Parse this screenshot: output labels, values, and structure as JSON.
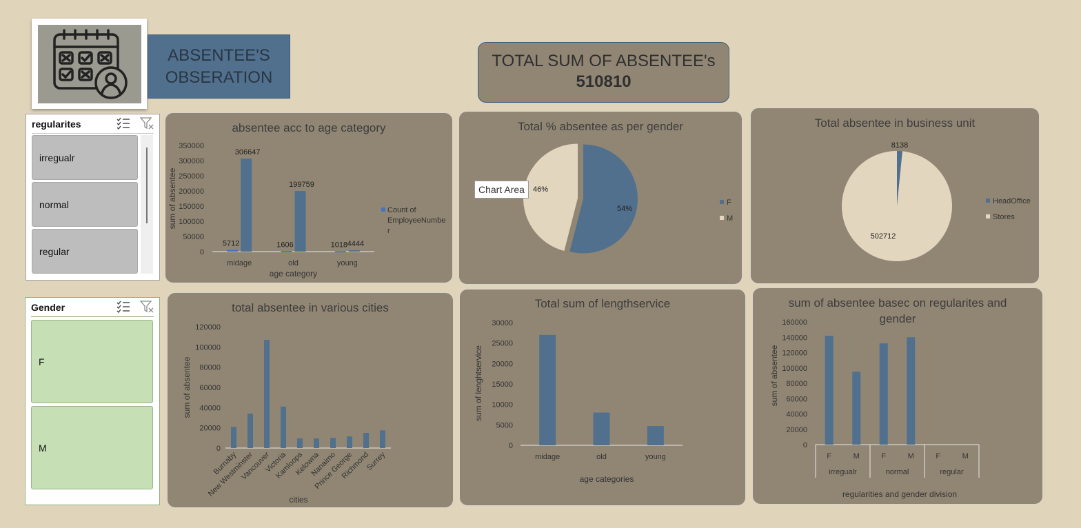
{
  "header": {
    "title_line1": "ABSENTEE'S",
    "title_line2": "OBSERATION",
    "total_label": "TOTAL SUM OF ABSENTEE's",
    "total_value": "510810"
  },
  "slicers": {
    "regularites": {
      "title": "regularites",
      "items": [
        "irregualr",
        "normal",
        "regular"
      ]
    },
    "gender": {
      "title": "Gender",
      "items": [
        "F",
        "M"
      ]
    }
  },
  "tooltip": "Chart Area",
  "colors": {
    "background": "#e0d4bb",
    "panel": "#918674",
    "series_blue": "#50708e",
    "series_cream": "#e3d6bf",
    "slicer_gray": "#bdbdbd",
    "slicer_green": "#c6dfb4"
  },
  "icons": [
    "calendar-person-icon",
    "multi-select-icon",
    "clear-filter-icon"
  ],
  "chart_data": [
    {
      "id": "age",
      "type": "bar",
      "title": "absentee acc to age category",
      "xlabel": "age category",
      "ylabel": "sum of absentee",
      "categories": [
        "midage",
        "old",
        "young"
      ],
      "ylim": [
        0,
        350000
      ],
      "yticks": [
        "0",
        "50000",
        "100000",
        "150000",
        "200000",
        "250000",
        "300000",
        "350000"
      ],
      "series": [
        {
          "name": "Count of EmployeeNumber",
          "values": [
            5712,
            1606,
            1018
          ]
        },
        {
          "values": [
            306647,
            199759,
            4444
          ]
        }
      ],
      "legend": [
        "Count of",
        "EmployeeNumbe",
        "r"
      ]
    },
    {
      "id": "gender",
      "type": "pie",
      "title": "Total % absentee as per gender",
      "categories": [
        "F",
        "M"
      ],
      "values": [
        54,
        46
      ],
      "labels": [
        "54%",
        "46%"
      ]
    },
    {
      "id": "business",
      "type": "pie",
      "title": "Total absentee in business unit",
      "categories": [
        "HeadOffice",
        "Stores"
      ],
      "values": [
        8138,
        502712
      ],
      "labels": [
        "8138",
        "502712"
      ]
    },
    {
      "id": "cities",
      "type": "bar",
      "title": "total absentee in various cities",
      "xlabel": "cities",
      "ylabel": "sum of absentee",
      "categories": [
        "Burnaby",
        "New Westminster",
        "Vancouver",
        "Victoria",
        "Kamloops",
        "Kelowna",
        "Nanaimo",
        "Prince George",
        "Richmond",
        "Surrey"
      ],
      "values": [
        21000,
        34000,
        107000,
        41000,
        9500,
        9500,
        10000,
        11500,
        15000,
        17500
      ],
      "ylim": [
        0,
        120000
      ],
      "yticks": [
        "0",
        "20000",
        "40000",
        "60000",
        "80000",
        "100000",
        "120000"
      ]
    },
    {
      "id": "length",
      "type": "bar",
      "title": "Total sum of lengthservice",
      "xlabel": "age categories",
      "ylabel": "sum of lenghtservice",
      "categories": [
        "midage",
        "old",
        "young"
      ],
      "values": [
        27000,
        8000,
        4700
      ],
      "ylim": [
        0,
        30000
      ],
      "yticks": [
        "0",
        "5000",
        "10000",
        "15000",
        "20000",
        "25000",
        "30000"
      ]
    },
    {
      "id": "regularity",
      "type": "bar",
      "title": "sum of absentee basec on regularites and gender",
      "xlabel": "regularities and gender division",
      "ylabel": "sum of absentee",
      "groups": [
        "irregualr",
        "normal",
        "regular"
      ],
      "categories": [
        "F",
        "M",
        "F",
        "M",
        "F",
        "M"
      ],
      "values": [
        142000,
        95000,
        132000,
        140000,
        0,
        0
      ],
      "ylim": [
        0,
        160000
      ],
      "yticks": [
        "0",
        "20000",
        "40000",
        "60000",
        "80000",
        "100000",
        "120000",
        "140000",
        "160000"
      ]
    }
  ]
}
